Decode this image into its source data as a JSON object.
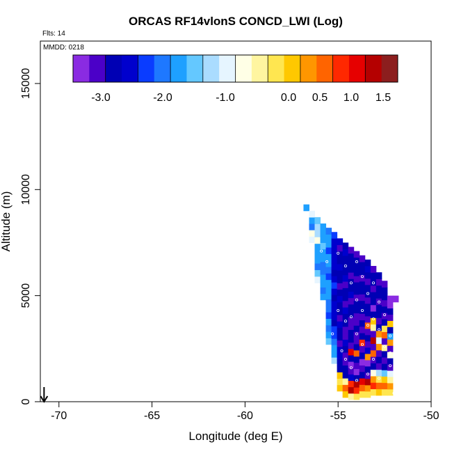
{
  "chart_data": {
    "type": "heatmap",
    "title": "ORCAS RF14vlonS CONCD_LWI (Log)",
    "flts_label": "Flts: 14",
    "mmdd_label": "MMDD: 0218",
    "xlabel": "Longitude (deg E)",
    "ylabel": "Altitude (m)",
    "xlim": [
      -71,
      -50
    ],
    "ylim": [
      0,
      17000
    ],
    "x_ticks": [
      "-70",
      "-65",
      "-60",
      "-55",
      "-50"
    ],
    "y_ticks": [
      "0",
      "5000",
      "10000",
      "15000"
    ],
    "colorbar": {
      "range": [
        -3.5,
        1.7
      ],
      "tick_labels": [
        "-3.0",
        "-2.0",
        "-1.0",
        "0.0",
        "0.5",
        "1.0",
        "1.5"
      ],
      "colors": [
        "#8a2be2",
        "#4b00c8",
        "#0000b4",
        "#0000cd",
        "#0a3cff",
        "#1e78ff",
        "#1ea0ff",
        "#64c8ff",
        "#aadcff",
        "#e6f5ff",
        "#ffffe6",
        "#fff5a0",
        "#ffe650",
        "#ffc800",
        "#ff9600",
        "#ff6400",
        "#ff2800",
        "#e60000",
        "#b40000",
        "#8c1e1e"
      ]
    },
    "arrow_marker_x": -70.8,
    "columns": [
      {
        "lon": -56.7,
        "alt_min": 9000,
        "alt_max": 9300,
        "values": [
          -1.8
        ]
      },
      {
        "lon": -56.4,
        "alt_min": 7500,
        "alt_max": 9000,
        "values": [
          -1.0,
          -0.9,
          -2.0,
          -1.8,
          -1.0
        ]
      },
      {
        "lon": -56.1,
        "alt_min": 5600,
        "alt_max": 8700,
        "values": [
          -1.1,
          -1.5,
          -2.0,
          -1.8,
          -1.7,
          -1.9,
          -0.9,
          -1.2,
          -1.4,
          -1.6
        ]
      },
      {
        "lon": -55.8,
        "alt_min": 4800,
        "alt_max": 8400,
        "values": [
          -1.8,
          -2.0,
          -1.7,
          -1.9,
          -2.1,
          -2.0,
          -1.9,
          -1.8,
          -1.5,
          -1.7,
          -1.8,
          -1.9
        ]
      },
      {
        "lon": -55.5,
        "alt_min": 2700,
        "alt_max": 8200,
        "values": [
          -1.6,
          -1.8,
          -2.0,
          -1.9,
          -2.2,
          -2.1,
          -2.0,
          -1.9,
          -1.8,
          -1.9,
          -2.3,
          -2.0,
          -1.8,
          -1.9,
          -2.2,
          -1.7,
          -1.9,
          -2.0
        ]
      },
      {
        "lon": -55.2,
        "alt_min": 1800,
        "alt_max": 8000,
        "values": [
          -1.2,
          -1.8,
          -1.7,
          -2.0,
          -2.3,
          -2.4,
          -2.8,
          -2.6,
          -2.5,
          -2.7,
          -2.9,
          -2.6,
          -2.4,
          -2.7,
          -2.8,
          -2.5,
          -2.6,
          -2.7,
          -2.6,
          -2.5,
          -2.4
        ]
      },
      {
        "lon": -54.9,
        "alt_min": 500,
        "alt_max": 7700,
        "values": [
          0.1,
          -0.3,
          -0.1,
          -2.8,
          -2.9,
          -2.7,
          -2.6,
          -3.1,
          -2.9,
          -2.8,
          -2.7,
          -3.0,
          -2.9,
          -2.8,
          -2.7,
          -2.9,
          -3.0,
          -2.8,
          -2.9,
          -2.7,
          -2.8,
          -2.9,
          -3.0,
          -2.7
        ]
      },
      {
        "lon": -54.6,
        "alt_min": 200,
        "alt_max": 7500,
        "values": [
          -0.1,
          0.6,
          -0.5,
          -2.9,
          -2.8,
          -3.1,
          -3.2,
          -2.9,
          -2.7,
          -3.0,
          -3.0,
          -2.8,
          -2.9,
          -2.7,
          -3.0,
          -2.8,
          -2.9,
          -3.0,
          -2.7,
          -2.8,
          -2.9,
          -2.8,
          -2.7,
          -2.9
        ]
      },
      {
        "lon": -54.3,
        "alt_min": 100,
        "alt_max": 7300,
        "values": [
          -0.4,
          1.2,
          0.8,
          -2.6,
          -3.0,
          -3.3,
          -2.9,
          1.1,
          -3.0,
          -2.9,
          -2.8,
          -3.1,
          -3.0,
          -2.8,
          -2.9,
          -3.0,
          -2.7,
          -2.9,
          -2.8,
          -3.0,
          -2.9,
          -2.8,
          -2.9,
          -3.0
        ]
      },
      {
        "lon": -54.0,
        "alt_min": 100,
        "alt_max": 7100,
        "values": [
          -0.2,
          0.9,
          1.4,
          -2.8,
          -3.3,
          -3.0,
          -2.9,
          0.4,
          -2.8,
          -3.0,
          -3.2,
          -2.9,
          -3.1,
          -3.0,
          -2.8,
          -2.9,
          -3.0,
          -2.9,
          -2.8,
          -3.0,
          -2.9,
          -2.8,
          -2.9,
          -3.0
        ]
      },
      {
        "lon": -53.7,
        "alt_min": 200,
        "alt_max": 6900,
        "values": [
          -0.3,
          0.5,
          1.0,
          -2.9,
          -3.0,
          -3.4,
          -2.8,
          -3.0,
          0.9,
          -2.9,
          -3.1,
          -2.9,
          -3.0,
          -2.8,
          -2.9,
          -3.0,
          -2.8,
          -2.9,
          -3.0,
          -2.8,
          -2.9,
          -3.0
        ]
      },
      {
        "lon": -53.4,
        "alt_min": 200,
        "alt_max": 6700,
        "values": [
          -0.2,
          0.3,
          1.3,
          -3.0,
          -2.9,
          -3.3,
          0.2,
          -2.7,
          -3.0,
          -2.8,
          -3.0,
          0.4,
          -3.1,
          -2.9,
          -2.8,
          -3.0,
          -2.9,
          -2.8,
          -3.0,
          -2.9,
          -2.7,
          -2.8
        ]
      },
      {
        "lon": -53.1,
        "alt_min": 300,
        "alt_max": 6400,
        "values": [
          -0.2,
          0.7,
          0.3,
          -0.8,
          -2.9,
          -3.2,
          0.5,
          -3.0,
          1.2,
          -3.1,
          -0.4,
          0.1,
          -2.9,
          -3.3,
          -2.8,
          -2.9,
          -3.0,
          -2.8,
          -2.9,
          -3.0
        ]
      },
      {
        "lon": -52.8,
        "alt_min": 300,
        "alt_max": 6100,
        "values": [
          -0.1,
          0.6,
          -0.3,
          -1.2,
          -3.0,
          -2.9,
          -3.1,
          0.3,
          -1.0,
          0.2,
          -2.8,
          -3.0,
          -2.9,
          -2.8,
          -3.0,
          -2.9,
          -2.8,
          -3.0,
          -2.9
        ]
      },
      {
        "lon": -52.5,
        "alt_min": 300,
        "alt_max": 5700,
        "values": [
          -0.2,
          0.4,
          0.1,
          -1.5,
          -2.9,
          -3.1,
          -2.8,
          -0.5,
          -3.0,
          0.6,
          -0.2,
          -2.9,
          -3.0,
          -2.8,
          -3.0,
          -2.9,
          -2.8,
          -3.0
        ]
      },
      {
        "lon": -52.2,
        "alt_min": 300,
        "alt_max": 5000,
        "values": [
          -0.3,
          0.2,
          -0.6,
          -1.1,
          -3.0,
          -2.9,
          -0.8,
          -3.1,
          0.3,
          -1.7,
          -2.9,
          -0.1,
          -3.0,
          -2.9,
          -3.3,
          -3.4
        ]
      },
      {
        "lon": -51.9,
        "alt_min": 4700,
        "alt_max": 5000,
        "values": [
          -3.4
        ]
      }
    ],
    "sample_points": [
      [
        -55.3,
        3200
      ],
      [
        -55.0,
        4300
      ],
      [
        -54.8,
        2400
      ],
      [
        -54.6,
        2000
      ],
      [
        -54.6,
        3800
      ],
      [
        -54.6,
        6400
      ],
      [
        -54.3,
        1600
      ],
      [
        -54.3,
        5600
      ],
      [
        -54.3,
        4000
      ],
      [
        -54.0,
        1000
      ],
      [
        -54.0,
        3200
      ],
      [
        -54.0,
        4800
      ],
      [
        -54.0,
        6600
      ],
      [
        -53.7,
        2700
      ],
      [
        -53.7,
        4300
      ],
      [
        -53.7,
        5900
      ],
      [
        -53.4,
        1300
      ],
      [
        -53.4,
        3600
      ],
      [
        -53.4,
        5100
      ],
      [
        -53.1,
        2000
      ],
      [
        -53.1,
        3900
      ],
      [
        -53.1,
        5600
      ],
      [
        -52.8,
        1100
      ],
      [
        -52.8,
        3400
      ],
      [
        -52.8,
        4700
      ],
      [
        -52.5,
        2600
      ],
      [
        -52.5,
        4100
      ],
      [
        -52.2,
        1700
      ],
      [
        -52.2,
        3100
      ],
      [
        -52.2,
        2300
      ],
      [
        -52.0,
        400
      ],
      [
        -55.6,
        6600
      ],
      [
        -55.9,
        7100
      ],
      [
        -55.0,
        7000
      ]
    ]
  }
}
